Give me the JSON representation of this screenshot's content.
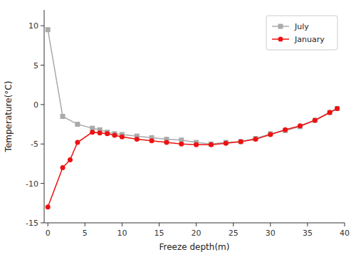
{
  "chart_data": {
    "type": "line",
    "xlabel": "Freeze depth(m)",
    "ylabel": "Temperature(°C)",
    "series": [
      {
        "name": "July",
        "color": "#aaaaaa",
        "marker": "square",
        "x": [
          0,
          2,
          4,
          6,
          7,
          8,
          9,
          10,
          12,
          14,
          16,
          18,
          20,
          22,
          24,
          26,
          28,
          30,
          32,
          34,
          36,
          38,
          39
        ],
        "values": [
          9.5,
          -1.5,
          -2.5,
          -3.0,
          -3.2,
          -3.5,
          -3.7,
          -3.8,
          -4.0,
          -4.2,
          -4.4,
          -4.5,
          -4.8,
          -5.0,
          -4.8,
          -4.7,
          -4.3,
          -3.7,
          -3.3,
          -2.8,
          -2.0,
          -1.0,
          -0.5
        ]
      },
      {
        "name": "January",
        "color": "#ee1111",
        "marker": "circle",
        "x": [
          0,
          2,
          3,
          4,
          6,
          7,
          8,
          9,
          10,
          12,
          14,
          16,
          18,
          20,
          22,
          24,
          26,
          28,
          30,
          32,
          34,
          36,
          38,
          39
        ],
        "values": [
          -13.0,
          -8.0,
          -7.0,
          -4.8,
          -3.5,
          -3.6,
          -3.7,
          -3.9,
          -4.1,
          -4.4,
          -4.6,
          -4.8,
          -5.0,
          -5.1,
          -5.1,
          -4.9,
          -4.7,
          -4.4,
          -3.8,
          -3.2,
          -2.7,
          -2.0,
          -1.0,
          -0.5
        ]
      }
    ],
    "xlim": [
      -0.5,
      40
    ],
    "ylim": [
      -15,
      12
    ],
    "xticks": [
      0,
      5,
      10,
      15,
      20,
      25,
      30,
      35,
      40
    ],
    "yticks": [
      -15,
      -10,
      -5,
      0,
      5,
      10
    ],
    "grid": false,
    "legend": "upper right"
  }
}
